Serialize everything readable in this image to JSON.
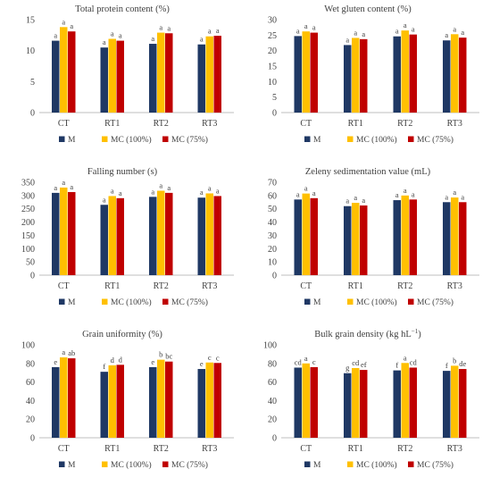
{
  "colors": {
    "M": "#1f3864",
    "MC100": "#ffc000",
    "MC75": "#c00000",
    "axis": "#bfbfbf",
    "text": "#404040"
  },
  "chart_data": [
    {
      "type": "bar",
      "title": "Total protein content (%)",
      "categories": [
        "CT",
        "RT1",
        "RT2",
        "RT3"
      ],
      "ylim": [
        0,
        15
      ],
      "yticks": [
        0,
        5,
        10,
        15
      ],
      "series": [
        {
          "name": "M",
          "values": [
            11.6,
            10.5,
            11.1,
            11.0
          ],
          "labels": [
            "a",
            "a",
            "a",
            "a"
          ]
        },
        {
          "name": "MC (100%)",
          "values": [
            13.8,
            11.9,
            12.9,
            12.3
          ],
          "labels": [
            "a",
            "a",
            "a",
            "a"
          ]
        },
        {
          "name": "MC (75%)",
          "values": [
            13.1,
            11.6,
            12.8,
            12.4
          ],
          "labels": [
            "a",
            "a",
            "a",
            "a"
          ]
        }
      ]
    },
    {
      "type": "bar",
      "title": "Wet gluten content (%)",
      "categories": [
        "CT",
        "RT1",
        "RT2",
        "RT3"
      ],
      "ylim": [
        0,
        30
      ],
      "yticks": [
        0,
        5,
        10,
        15,
        20,
        25,
        30
      ],
      "series": [
        {
          "name": "M",
          "values": [
            24.7,
            21.8,
            24.6,
            23.3
          ],
          "labels": [
            "a",
            "a",
            "a",
            "a"
          ]
        },
        {
          "name": "MC (100%)",
          "values": [
            26.2,
            24.1,
            26.5,
            25.3
          ],
          "labels": [
            "a",
            "a",
            "a",
            "a"
          ]
        },
        {
          "name": "MC (75%)",
          "values": [
            25.8,
            23.7,
            25.2,
            24.2
          ],
          "labels": [
            "a",
            "a",
            "a",
            "a"
          ]
        }
      ]
    },
    {
      "type": "bar",
      "title": "Falling number (s)",
      "categories": [
        "CT",
        "RT1",
        "RT2",
        "RT3"
      ],
      "ylim": [
        0,
        350
      ],
      "yticks": [
        0,
        50,
        100,
        150,
        200,
        250,
        300,
        350
      ],
      "series": [
        {
          "name": "M",
          "values": [
            310,
            265,
            295,
            292
          ],
          "labels": [
            "a",
            "a",
            "a",
            "a"
          ]
        },
        {
          "name": "MC (100%)",
          "values": [
            330,
            298,
            318,
            308
          ],
          "labels": [
            "a",
            "a",
            "a",
            "a"
          ]
        },
        {
          "name": "MC (75%)",
          "values": [
            313,
            290,
            310,
            298
          ],
          "labels": [
            "a",
            "a",
            "a",
            "a"
          ]
        }
      ]
    },
    {
      "type": "bar",
      "title": "Zeleny sedimentation value (mL)",
      "categories": [
        "CT",
        "RT1",
        "RT2",
        "RT3"
      ],
      "ylim": [
        0,
        70
      ],
      "yticks": [
        0,
        10,
        20,
        30,
        40,
        50,
        60,
        70
      ],
      "series": [
        {
          "name": "M",
          "values": [
            57,
            52,
            56.5,
            55
          ],
          "labels": [
            "a",
            "a",
            "a",
            "a"
          ]
        },
        {
          "name": "MC (100%)",
          "values": [
            61.5,
            54.5,
            60,
            58.5
          ],
          "labels": [
            "a",
            "a",
            "a",
            "a"
          ]
        },
        {
          "name": "MC (75%)",
          "values": [
            58,
            52.5,
            57,
            55
          ],
          "labels": [
            "a",
            "a",
            "a",
            "a"
          ]
        }
      ]
    },
    {
      "type": "bar",
      "title": "Grain uniformity (%)",
      "categories": [
        "CT",
        "RT1",
        "RT2",
        "RT3"
      ],
      "ylim": [
        0,
        100
      ],
      "yticks": [
        0,
        20,
        40,
        60,
        80,
        100
      ],
      "series": [
        {
          "name": "M",
          "values": [
            76,
            71,
            76,
            74
          ],
          "labels": [
            "e",
            "f",
            "e",
            "e"
          ]
        },
        {
          "name": "MC (100%)",
          "values": [
            86.5,
            78,
            84,
            81
          ],
          "labels": [
            "a",
            "d",
            "b",
            "c"
          ]
        },
        {
          "name": "MC (75%)",
          "values": [
            85.5,
            78.5,
            82,
            80.5
          ],
          "labels": [
            "ab",
            "d",
            "bc",
            "c"
          ]
        }
      ]
    },
    {
      "type": "bar",
      "title": "Bulk grain density (kg hL",
      "title_sup": "−1",
      "title_end": ")",
      "categories": [
        "CT",
        "RT1",
        "RT2",
        "RT3"
      ],
      "ylim": [
        0,
        100
      ],
      "yticks": [
        0,
        20,
        40,
        60,
        80,
        100
      ],
      "series": [
        {
          "name": "M",
          "values": [
            75.5,
            69.5,
            72.5,
            72
          ],
          "labels": [
            "cd",
            "g",
            "f",
            "f"
          ]
        },
        {
          "name": "MC (100%)",
          "values": [
            80,
            75,
            80.5,
            77.5
          ],
          "labels": [
            "a",
            "cd",
            "a",
            "b"
          ]
        },
        {
          "name": "MC (75%)",
          "values": [
            76,
            73,
            75.5,
            74
          ],
          "labels": [
            "c",
            "ef",
            "cd",
            "de"
          ]
        }
      ]
    }
  ]
}
